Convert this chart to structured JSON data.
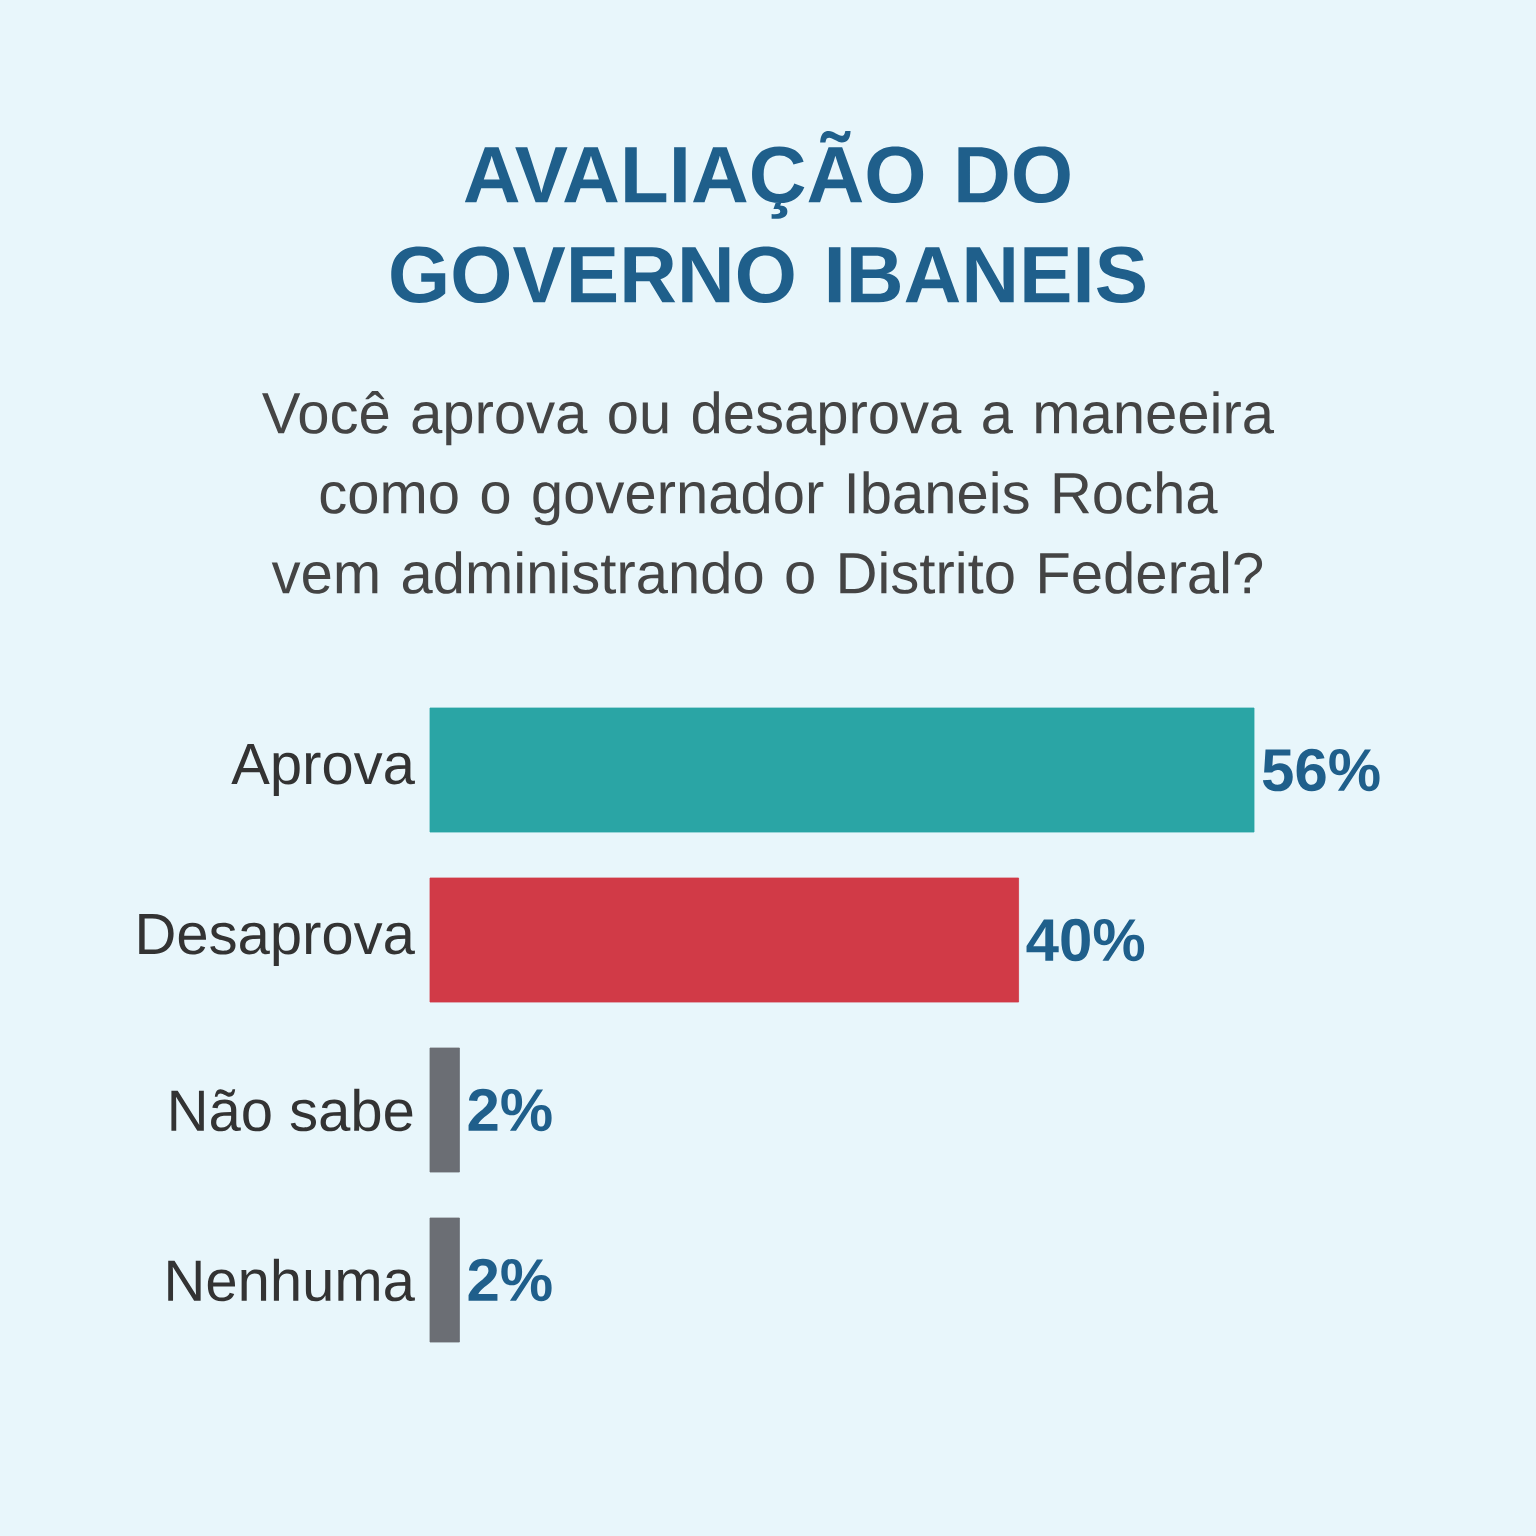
{
  "chart_data": {
    "type": "bar",
    "orientation": "horizontal",
    "title": "AVALIAÇÃO DO GOVERNO IBANEIS",
    "subtitle": "Você aprova ou desaprova a maneeira como o governador Ibaneis Rocha vem administrando o Distrito Federal?",
    "categories": [
      "Aprova",
      "Desaprova",
      "Não sabe",
      "Nenhuma"
    ],
    "values": [
      56,
      40,
      2,
      2
    ],
    "colors": [
      "#2aa5a5",
      "#d13a47",
      "#6b6e74",
      "#6b6e74"
    ],
    "value_labels": [
      "56%",
      "40%",
      "2%",
      "2%"
    ]
  }
}
